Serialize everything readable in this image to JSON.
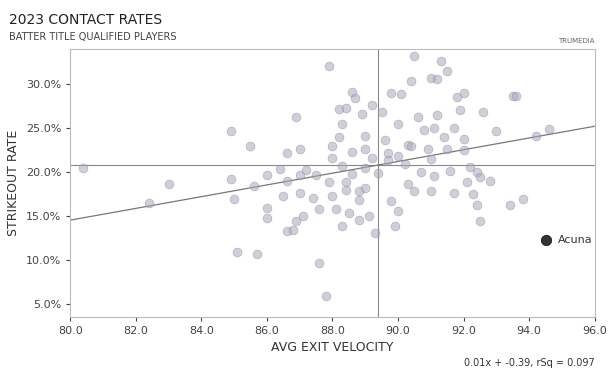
{
  "chart_data": {
    "type": "scatter",
    "title": "2023 CONTACT RATES",
    "subtitle": "BATTER TITLE QUALIFIED PLAYERS",
    "logo": "TRUMEDIA",
    "x_label": "AVG EXIT VELOCITY",
    "y_label": "STRIKEOUT RATE",
    "x": [
      80.4,
      82.4,
      83.0,
      84.9,
      85.5,
      84.9,
      85.0,
      85.1,
      85.7,
      85.6,
      86.0,
      86.0,
      86.0,
      86.4,
      86.6,
      86.6,
      86.5,
      86.6,
      86.8,
      87.0,
      87.0,
      87.1,
      86.9,
      87.0,
      87.2,
      87.5,
      87.4,
      87.6,
      87.6,
      87.8,
      87.9,
      88.0,
      88.0,
      87.9,
      88.0,
      88.1,
      88.3,
      88.2,
      88.4,
      88.3,
      88.2,
      88.3,
      88.4,
      88.4,
      88.5,
      88.6,
      88.7,
      88.6,
      88.6,
      88.8,
      88.8,
      88.8,
      88.9,
      89.0,
      89.0,
      89.0,
      89.0,
      89.2,
      89.1,
      89.3,
      89.2,
      89.4,
      89.6,
      89.7,
      89.7,
      89.8,
      89.8,
      89.9,
      90.0,
      90.1,
      90.0,
      90.2,
      90.3,
      90.3,
      90.4,
      90.5,
      90.4,
      90.5,
      90.6,
      90.7,
      90.8,
      90.9,
      91.0,
      91.0,
      91.0,
      91.1,
      91.2,
      91.1,
      91.3,
      91.2,
      91.4,
      91.5,
      91.5,
      91.6,
      91.7,
      91.8,
      91.9,
      91.7,
      92.0,
      92.0,
      92.2,
      92.1,
      92.3,
      92.4,
      92.5,
      92.4,
      92.5,
      92.6,
      92.0,
      93.0,
      93.5,
      93.6,
      93.4,
      93.8,
      94.2,
      94.6,
      94.5,
      86.9,
      90.0,
      89.5,
      92.8
    ],
    "values": [
      20.4,
      16.4,
      18.6,
      24.7,
      23.0,
      19.2,
      16.9,
      10.9,
      10.6,
      18.4,
      19.6,
      15.9,
      14.8,
      20.3,
      22.1,
      19.0,
      17.3,
      13.3,
      13.4,
      19.6,
      17.6,
      15.0,
      26.2,
      22.6,
      20.2,
      19.6,
      17.0,
      15.8,
      9.6,
      5.8,
      32.1,
      23.0,
      21.6,
      18.8,
      17.2,
      15.8,
      13.8,
      27.2,
      27.3,
      25.5,
      24.0,
      20.7,
      18.9,
      17.9,
      15.3,
      29.1,
      28.4,
      22.3,
      19.8,
      17.8,
      16.8,
      14.5,
      26.6,
      24.1,
      22.6,
      20.4,
      18.2,
      21.6,
      15.0,
      13.0,
      27.6,
      19.9,
      23.6,
      21.3,
      22.1,
      29.0,
      16.7,
      13.8,
      25.5,
      28.9,
      21.8,
      20.9,
      23.1,
      18.6,
      22.9,
      33.2,
      30.3,
      17.8,
      26.3,
      20.0,
      24.8,
      22.6,
      30.7,
      21.5,
      17.8,
      25.0,
      30.6,
      19.5,
      32.6,
      26.5,
      24.0,
      31.5,
      22.6,
      20.1,
      17.6,
      28.5,
      27.0,
      25.0,
      23.8,
      22.5,
      20.5,
      18.9,
      17.5,
      16.2,
      14.4,
      20.0,
      19.4,
      26.8,
      29.0,
      24.7,
      28.6,
      28.7,
      16.2,
      16.9,
      24.1,
      24.9,
      12.2,
      14.4,
      15.5,
      26.8,
      19.0
    ],
    "color": "#a8a8bc",
    "xlim": [
      80,
      96
    ],
    "ylim": [
      3.5,
      34
    ],
    "xticks": [
      {
        "value": 80,
        "label": "80.0"
      },
      {
        "value": 82,
        "label": "82.0"
      },
      {
        "value": 84,
        "label": "84.0"
      },
      {
        "value": 86,
        "label": "86.0"
      },
      {
        "value": 88,
        "label": "88.0"
      },
      {
        "value": 90,
        "label": "90.0"
      },
      {
        "value": 92,
        "label": "92.0"
      },
      {
        "value": 94,
        "label": "94.0"
      },
      {
        "value": 96,
        "label": "96.0"
      }
    ],
    "yticks": [
      {
        "value": 5,
        "label": "5.0%"
      },
      {
        "value": 10,
        "label": "10.0%"
      },
      {
        "value": 15,
        "label": "15.0%"
      },
      {
        "value": 20,
        "label": "20.0%"
      },
      {
        "value": 25,
        "label": "25.0%"
      },
      {
        "value": 30,
        "label": "30.0%"
      }
    ],
    "mean_lines": {
      "x": 89.4,
      "y": 20.8
    },
    "trend_line": {
      "x": [
        80,
        96
      ],
      "values": [
        14.5,
        25.2
      ]
    },
    "trend_label": "0.01x + -0.39, rSq = 0.097",
    "annotations": [
      {
        "text": "Acuna",
        "x": 94.5,
        "y": 12.2
      }
    ],
    "grid": false
  }
}
